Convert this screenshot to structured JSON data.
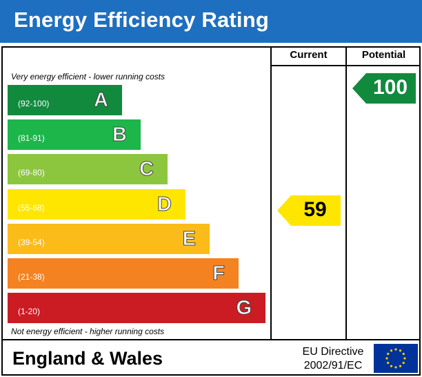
{
  "header": {
    "title": "Energy Efficiency Rating",
    "bg_color": "#1f6fc0"
  },
  "columns": {
    "current": "Current",
    "potential": "Potential"
  },
  "captions": {
    "top": "Very energy efficient - lower running costs",
    "bottom": "Not energy efficient - higher running costs"
  },
  "chart_data": {
    "type": "bar",
    "categories": [
      "A",
      "B",
      "C",
      "D",
      "E",
      "F",
      "G"
    ],
    "ranges": [
      "(92-100)",
      "(81-91)",
      "(69-80)",
      "(55-68)",
      "(39-54)",
      "(21-38)",
      "(1-20)"
    ],
    "colors": [
      "#118a3d",
      "#1cb64a",
      "#8cc63e",
      "#ffe600",
      "#fbbb19",
      "#f58220",
      "#cc1c23"
    ],
    "current": {
      "value": 59,
      "band": "D",
      "color": "#ffe600"
    },
    "potential": {
      "value": 100,
      "band": "A",
      "color": "#118a3d"
    }
  },
  "footer": {
    "region": "England & Wales",
    "directive_line1": "EU Directive",
    "directive_line2": "2002/91/EC",
    "flag_icon": "eu-flag-icon"
  }
}
